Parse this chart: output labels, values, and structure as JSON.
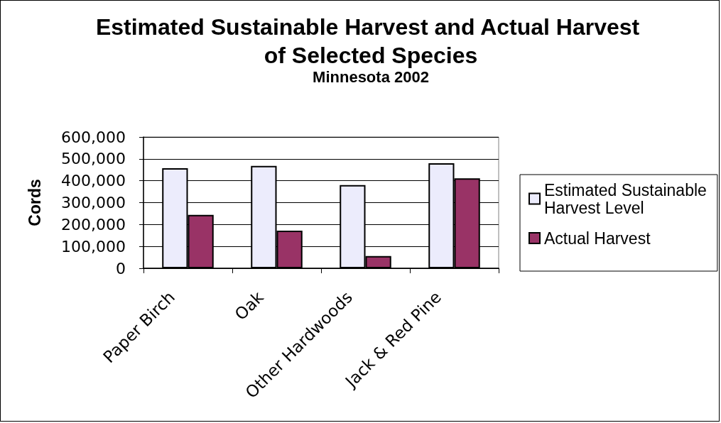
{
  "chart_data": {
    "type": "bar",
    "title": "Estimated Sustainable Harvest and Actual Harvest of Selected Species",
    "subtitle": "Minnesota 2002",
    "ylabel": "Cords",
    "categories": [
      "Paper Birch",
      "Oak",
      "Other Hardwoods",
      "Jack & Red Pine"
    ],
    "series": [
      {
        "name": "Estimated Sustainable Harvest Level",
        "color": "#ececfc",
        "values": [
          457000,
          468000,
          380000,
          480000
        ]
      },
      {
        "name": "Actual Harvest",
        "color": "#993366",
        "values": [
          244000,
          172000,
          56000,
          411000
        ]
      }
    ],
    "ylim": [
      0,
      600000
    ],
    "yticks": [
      {
        "value": 0,
        "label": "0"
      },
      {
        "value": 100000,
        "label": "100,000"
      },
      {
        "value": 200000,
        "label": "200,000"
      },
      {
        "value": 300000,
        "label": "300,000"
      },
      {
        "value": 400000,
        "label": "400,000"
      },
      {
        "value": 500000,
        "label": "500,000"
      },
      {
        "value": 600000,
        "label": "600,000"
      }
    ],
    "grid": "y",
    "legend": "right"
  }
}
